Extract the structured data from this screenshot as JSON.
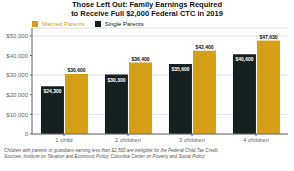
{
  "chart_data": {
    "type": "bar",
    "title": "Those Left Out: Family Earnings Required\nto Receive Full $2,000 Federal CTC in 2019",
    "subtitle": "Children with parents or guardians earning less than $2,500 are ineligible for the Federal Child Tax Credit.\nSources: Institute on Taxation and Economic Policy, Columbia Center on Poverty and Social Policy",
    "categories": [
      "1 child",
      "2 children",
      "3 children",
      "4 children"
    ],
    "series": [
      {
        "name": "Single Parents",
        "color": "#162020",
        "values": [
          24300,
          30300,
          35600,
          40600
        ],
        "value_labels": [
          "$24,300",
          "$30,300",
          "$35,600",
          "$40,600"
        ]
      },
      {
        "name": "Married Parents",
        "color": "#d4a017",
        "values": [
          30600,
          36400,
          42400,
          47630
        ],
        "value_labels": [
          "$30,600",
          "$36,400",
          "$42,400",
          "$47,630"
        ]
      }
    ],
    "ylim": [
      0,
      54000
    ],
    "yticks": [
      0,
      {
        "value": 10000,
        "label": "$10,000"
      },
      {
        "value": 20000,
        "label": "$20,000"
      },
      {
        "value": 30000,
        "label": "$30,000"
      },
      {
        "value": 40000,
        "label": "$40,000"
      },
      {
        "value": 50000,
        "label": "$50,000"
      }
    ],
    "grid": true,
    "legend": "upper left",
    "data_labels": true
  }
}
